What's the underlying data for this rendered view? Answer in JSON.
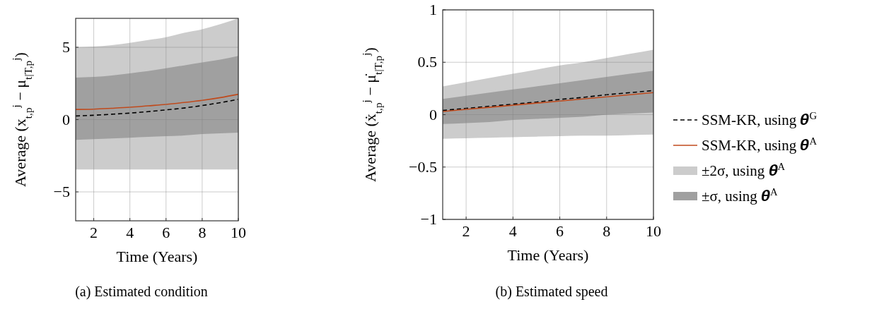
{
  "chart_data": [
    {
      "type": "line",
      "title": "(a) Estimated condition",
      "xlabel": "Time (Years)",
      "ylabel": "Average (x$_{t,p}$$^{j}$ − μ$_{t|T,p}$$^{j}$)",
      "xlim": [
        1,
        10
      ],
      "xticks": [
        2,
        4,
        6,
        8,
        10
      ],
      "ylim": [
        -7,
        7
      ],
      "yticks": [
        -5,
        0,
        5
      ],
      "grid": true,
      "legend": false,
      "x": [
        1,
        2,
        3,
        4,
        5,
        6,
        7,
        8,
        9,
        10
      ],
      "series": [
        {
          "line_style": "dashed",
          "color": "#000000",
          "values": [
            0.25,
            0.3,
            0.37,
            0.45,
            0.55,
            0.67,
            0.8,
            0.97,
            1.17,
            1.4
          ]
        },
        {
          "line_style": "solid",
          "color": "#c04a1c",
          "values": [
            0.7,
            0.72,
            0.78,
            0.85,
            0.95,
            1.05,
            1.18,
            1.33,
            1.52,
            1.75
          ]
        },
        {
          "color": "#cccccc",
          "values": [
            null,
            null,
            null,
            null,
            null,
            null,
            null,
            null,
            null,
            null
          ],
          "lower": [
            -3.45,
            -3.45,
            -3.45,
            -3.45,
            -3.45,
            -3.45,
            -3.45,
            -3.45,
            -3.45,
            -3.45
          ],
          "upper": [
            5.0,
            5.05,
            5.15,
            5.3,
            5.5,
            5.7,
            6.0,
            6.25,
            6.6,
            7.0
          ]
        },
        {
          "color": "#a0a0a0",
          "values": [
            null,
            null,
            null,
            null,
            null,
            null,
            null,
            null,
            null,
            null
          ],
          "lower": [
            -1.4,
            -1.35,
            -1.3,
            -1.25,
            -1.2,
            -1.15,
            -1.1,
            -1.0,
            -0.95,
            -0.9
          ],
          "upper": [
            2.9,
            2.95,
            3.05,
            3.2,
            3.35,
            3.55,
            3.75,
            3.95,
            4.15,
            4.4
          ]
        }
      ]
    },
    {
      "type": "line",
      "title": "(b) Estimated speed",
      "xlabel": "Time (Years)",
      "ylabel": "Average (ẋ$_{t,p}$$^{j}$ − μ̇$_{t|T,p}$$^{j}$)",
      "xlim": [
        1,
        10
      ],
      "xticks": [
        2,
        4,
        6,
        8,
        10
      ],
      "ylim": [
        -1,
        1
      ],
      "yticks": [
        -1,
        -0.5,
        0,
        0.5,
        1
      ],
      "grid": true,
      "legend": "right",
      "x": [
        1,
        2,
        3,
        4,
        5,
        6,
        7,
        8,
        9,
        10
      ],
      "series": [
        {
          "name": "SSM-KR, using 𝜽$^{G}$",
          "line_style": "dashed",
          "color": "#000000",
          "values": [
            0.04,
            0.06,
            0.08,
            0.1,
            0.12,
            0.145,
            0.165,
            0.19,
            0.21,
            0.23
          ]
        },
        {
          "name": "SSM-KR, using 𝜽$^{A}$",
          "line_style": "solid",
          "color": "#c04a1c",
          "values": [
            0.03,
            0.05,
            0.07,
            0.09,
            0.11,
            0.13,
            0.15,
            0.17,
            0.19,
            0.21
          ]
        },
        {
          "name": "±2σ, using 𝜽$^{A}$",
          "color": "#cccccc",
          "values": [
            null,
            null,
            null,
            null,
            null,
            null,
            null,
            null,
            null,
            null
          ],
          "lower": [
            -0.23,
            -0.225,
            -0.22,
            -0.215,
            -0.21,
            -0.205,
            -0.2,
            -0.2,
            -0.195,
            -0.19
          ],
          "upper": [
            0.27,
            0.31,
            0.35,
            0.39,
            0.43,
            0.47,
            0.5,
            0.54,
            0.58,
            0.62
          ]
        },
        {
          "name": "±σ, using 𝜽$^{A}$",
          "color": "#a0a0a0",
          "values": [
            null,
            null,
            null,
            null,
            null,
            null,
            null,
            null,
            null,
            null
          ],
          "lower": [
            -0.09,
            -0.08,
            -0.07,
            -0.05,
            -0.04,
            -0.03,
            -0.02,
            0.0,
            0.01,
            0.02
          ],
          "upper": [
            0.15,
            0.18,
            0.21,
            0.24,
            0.27,
            0.3,
            0.33,
            0.36,
            0.39,
            0.42
          ]
        }
      ]
    }
  ]
}
